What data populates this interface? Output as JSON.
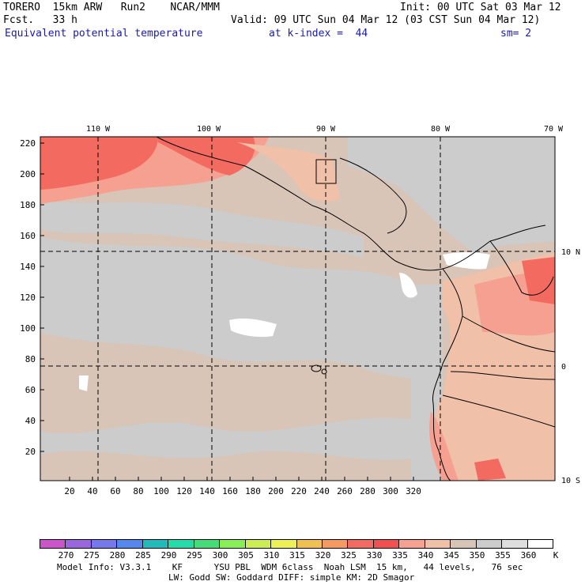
{
  "header": {
    "line1_left": "TORERO  15km ARW   Run2    NCAR/MMM",
    "line1_right": "Init: 00 UTC Sat 03 Mar 12",
    "line2_left": "Fcst.   33 h",
    "line2_right": "Valid: 09 UTC Sun 04 Mar 12 (03 CST Sun 04 Mar 12)",
    "line3_field": "Equivalent potential temperature",
    "line3_level": "at k-index =  44",
    "line3_smooth": "sm= 2"
  },
  "map": {
    "top_lon_labels": [
      "110 W",
      "100 W",
      "90 W",
      "80 W",
      "70 W"
    ],
    "right_lat_labels": [
      "10 N",
      "0",
      "10 S"
    ],
    "left_axis_ticks": [
      "220",
      "200",
      "180",
      "160",
      "140",
      "120",
      "100",
      "80",
      "60",
      "40",
      "20"
    ],
    "bottom_axis_ticks": [
      "20",
      "40",
      "60",
      "80",
      "100",
      "120",
      "140",
      "160",
      "180",
      "200",
      "220",
      "240",
      "260",
      "280",
      "300",
      "320"
    ]
  },
  "colorbar": {
    "unit": "K",
    "labels": [
      "270",
      "275",
      "280",
      "285",
      "290",
      "295",
      "300",
      "305",
      "310",
      "315",
      "320",
      "325",
      "330",
      "335",
      "340",
      "345",
      "350",
      "355",
      "360"
    ],
    "colors": [
      "#cc55cc",
      "#9966dd",
      "#7777ee",
      "#5588ee",
      "#22bbbb",
      "#22ddaa",
      "#44dd77",
      "#88ee55",
      "#ccee55",
      "#eeee55",
      "#f0c050",
      "#f59a60",
      "#f26a60",
      "#f25050",
      "#f5a090",
      "#f0c0a8",
      "#d9c4b8",
      "#cccccc",
      "#dedede",
      "#ffffff"
    ]
  },
  "footer": {
    "line1": "Model Info: V3.3.1    KF      YSU PBL  WDM 6class  Noah LSM  15 km,   44 levels,   76 sec",
    "line2": "LW: Godd SW: Goddard DIFF: simple KM: 2D Smagor"
  }
}
